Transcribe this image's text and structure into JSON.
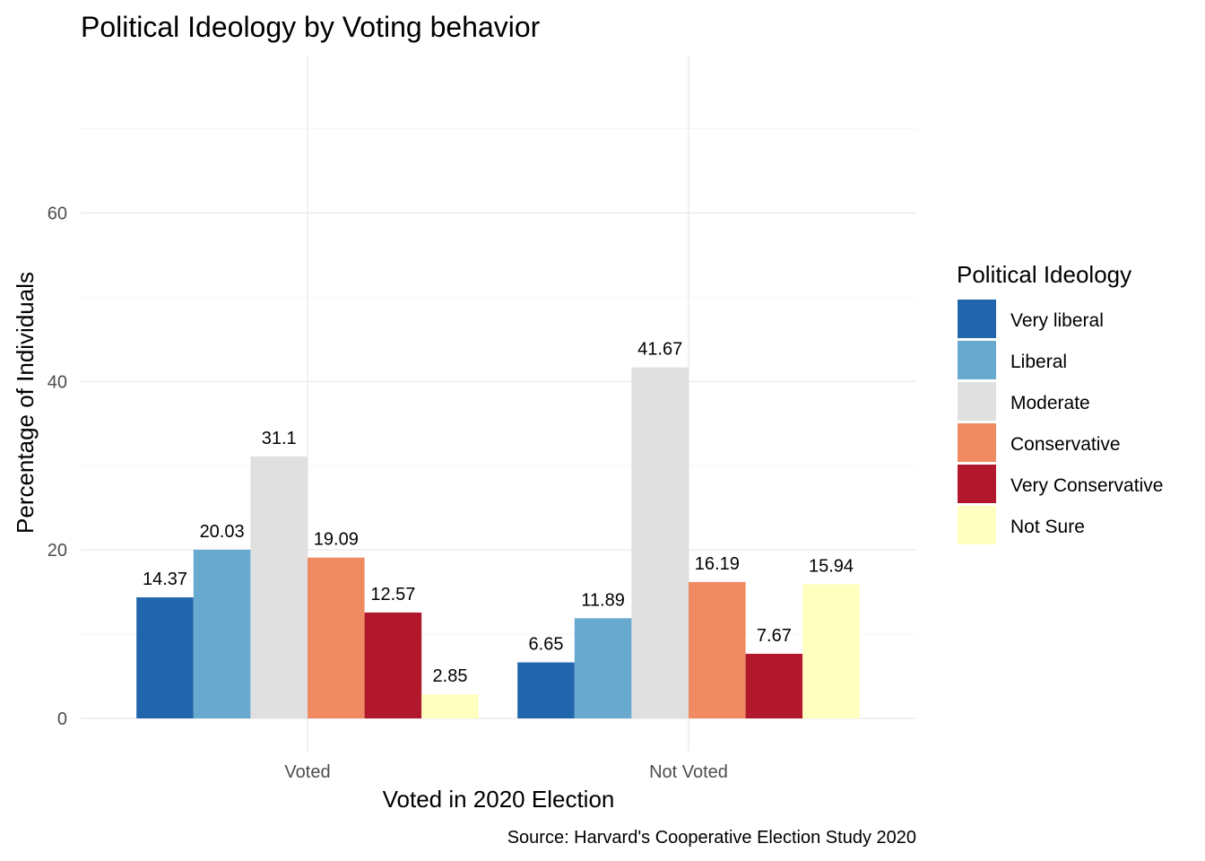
{
  "chart_data": {
    "type": "bar",
    "title": "Political Ideology by Voting behavior",
    "xlabel": "Voted in 2020 Election",
    "ylabel": "Percentage of Individuals",
    "caption": "Source: Harvard's Cooperative Election Study 2020",
    "legend_title": "Political Ideology",
    "legend_position": "right",
    "categories": [
      "Voted",
      "Not Voted"
    ],
    "y_ticks": [
      0,
      20,
      40,
      60
    ],
    "ylim": [
      0,
      72
    ],
    "grid": true,
    "series": [
      {
        "name": "Very liberal",
        "color": "#2166ac",
        "values": [
          14.37,
          6.65
        ]
      },
      {
        "name": "Liberal",
        "color": "#67a9cf",
        "values": [
          20.03,
          11.89
        ]
      },
      {
        "name": "Moderate",
        "color": "#e0e0e0",
        "values": [
          31.1,
          41.67
        ]
      },
      {
        "name": "Conservative",
        "color": "#ef8a62",
        "values": [
          19.09,
          16.19
        ]
      },
      {
        "name": "Very Conservative",
        "color": "#b2182b",
        "values": [
          12.57,
          7.67
        ]
      },
      {
        "name": "Not Sure",
        "color": "#ffffbf",
        "values": [
          2.85,
          15.94
        ]
      }
    ]
  }
}
